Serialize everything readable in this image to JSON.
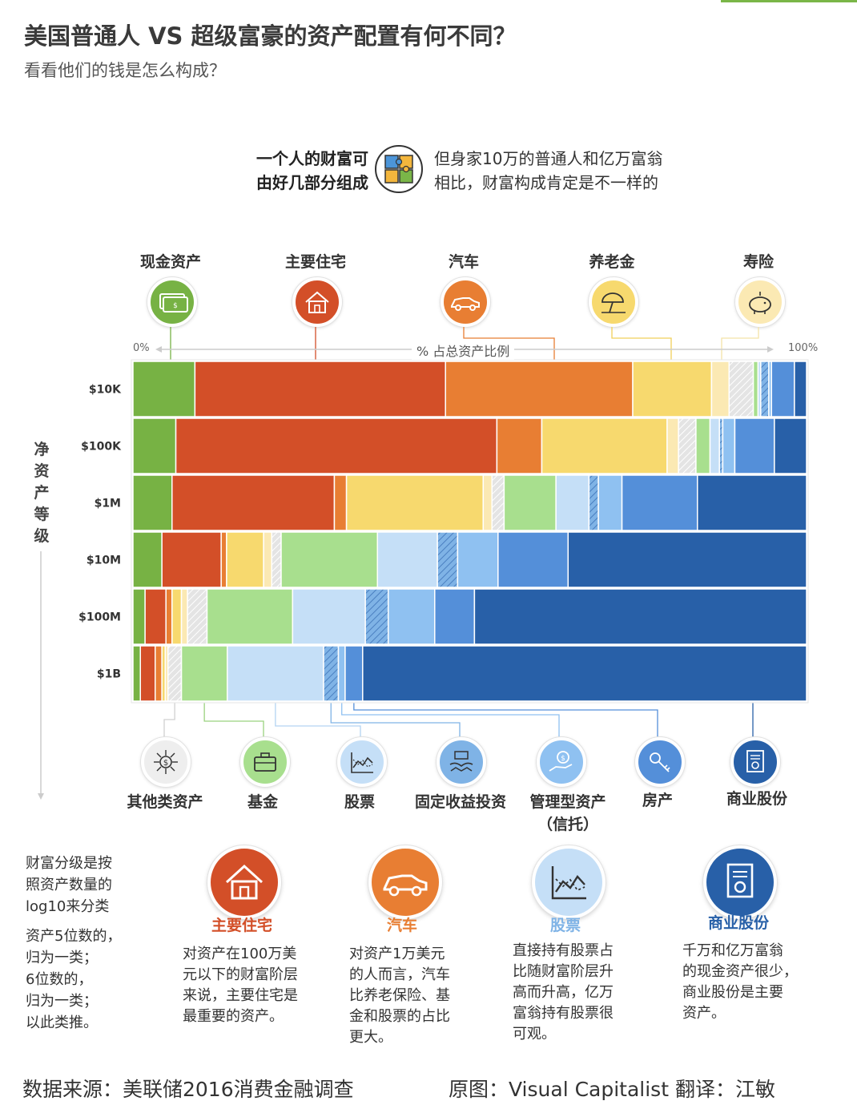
{
  "title": "美国普通人 VS 超级富豪的资产配置有何不同？",
  "subtitle": "看看他们的钱是怎么构成？",
  "intro": {
    "bold_line1": "一个人的财富可",
    "bold_line2": "由好几部分组成",
    "text_line1": "但身家10万的普通人和亿万富翁",
    "text_line2": "相比，财富构成肯定是不一样的",
    "icon": "puzzle-icon"
  },
  "categories_top": [
    {
      "label": "现金资产",
      "icon": "cash-icon",
      "color": "#77b244"
    },
    {
      "label": "主要住宅",
      "icon": "house-icon",
      "color": "#d34f28"
    },
    {
      "label": "汽车",
      "icon": "car-icon",
      "color": "#e87e33"
    },
    {
      "label": "养老金",
      "icon": "beach-umbrella-icon",
      "color": "#f7d96e"
    },
    {
      "label": "寿险",
      "icon": "piggy-bank-icon",
      "color": "#fbe9b3"
    }
  ],
  "categories_bottom": [
    {
      "label": "其他类资产",
      "icon": "dollar-network-icon",
      "color": "#e8e8e8"
    },
    {
      "label": "基金",
      "icon": "briefcase-icon",
      "color": "#a8df8e"
    },
    {
      "label": "股票",
      "icon": "stock-chart-icon",
      "color": "#c5dff7"
    },
    {
      "label": "固定收益投资",
      "icon": "money-hands-icon",
      "color": "#8bbde8"
    },
    {
      "label": "管理型资产（信托）",
      "icon": "hand-coin-icon",
      "color": "#8fc1f1"
    },
    {
      "label": "房产",
      "icon": "keys-icon",
      "color": "#548fd9"
    },
    {
      "label": "商业股份",
      "icon": "certificate-icon",
      "color": "#2860a8"
    }
  ],
  "chart_data": {
    "type": "bar",
    "orientation": "horizontal-stacked-100",
    "axis": {
      "left_label": "0%",
      "right_label": "100%",
      "title": "% 占总资产比例"
    },
    "ylabel": "净资产等级",
    "segments": [
      {
        "name": "现金资产",
        "color": "#77b244",
        "pattern": "solid"
      },
      {
        "name": "主要住宅",
        "color": "#d34f28",
        "pattern": "solid"
      },
      {
        "name": "汽车",
        "color": "#e87e33",
        "pattern": "solid"
      },
      {
        "name": "养老金",
        "color": "#f7d96e",
        "pattern": "solid"
      },
      {
        "name": "寿险",
        "color": "#fbe9b3",
        "pattern": "solid"
      },
      {
        "name": "其他类资产",
        "color": "#e4e4e4",
        "pattern": "hatch"
      },
      {
        "name": "基金",
        "color": "#a8df8e",
        "pattern": "solid"
      },
      {
        "name": "股票",
        "color": "#c5dff7",
        "pattern": "solid"
      },
      {
        "name": "固定收益投资",
        "color": "#7fb3e6",
        "pattern": "hatch"
      },
      {
        "name": "管理型资产（信托）",
        "color": "#8fc1f1",
        "pattern": "solid"
      },
      {
        "name": "房产",
        "color": "#548fd9",
        "pattern": "solid"
      },
      {
        "name": "商业股份",
        "color": "#2860a8",
        "pattern": "solid"
      }
    ],
    "rows": [
      {
        "label": "$10K",
        "values": [
          9.2,
          37.2,
          27.8,
          11.7,
          2.6,
          3.6,
          0.7,
          0.4,
          1.2,
          0.4,
          3.4,
          1.8
        ]
      },
      {
        "label": "$100K",
        "values": [
          6.4,
          47.9,
          6.7,
          18.7,
          1.7,
          2.6,
          2.1,
          1.4,
          0.5,
          1.8,
          5.9,
          4.8
        ]
      },
      {
        "label": "$1M",
        "values": [
          5.8,
          24.1,
          1.8,
          20.3,
          1.3,
          1.8,
          7.7,
          4.9,
          1.4,
          3.5,
          11.2,
          16.2
        ]
      },
      {
        "label": "$10M",
        "values": [
          4.3,
          8.8,
          0.8,
          5.5,
          1.2,
          1.4,
          14.3,
          8.9,
          3.0,
          6.0,
          10.4,
          35.4
        ]
      },
      {
        "label": "$100M",
        "values": [
          1.8,
          3.1,
          0.9,
          1.4,
          0.9,
          2.9,
          12.7,
          10.8,
          3.4,
          6.9,
          5.9,
          49.3
        ]
      },
      {
        "label": "$1B",
        "values": [
          1.1,
          2.2,
          1.0,
          0.5,
          0.4,
          2.0,
          6.8,
          14.3,
          2.2,
          1.0,
          2.6,
          65.9
        ]
      }
    ]
  },
  "note": {
    "line1": "财富分级是按",
    "line2": "照资产数量的",
    "line3": "log10来分类",
    "line4": "资产5位数的，",
    "line5": "归为一类；",
    "line6": "6位数的，",
    "line7": "归为一类；",
    "line8": "以此类推。"
  },
  "annotations": [
    {
      "title": "主要住宅",
      "color": "#d34f28",
      "icon": "house-icon",
      "lines": [
        "对资产在100万美",
        "元以下的财富阶层",
        "来说，主要住宅是",
        "最重要的资产。"
      ]
    },
    {
      "title": "汽车",
      "color": "#e87e33",
      "icon": "car-icon",
      "lines": [
        "对资产1万美元",
        "的人而言，汽车",
        "比养老保险、基",
        "金和股票的占比",
        "更大。"
      ]
    },
    {
      "title": "股票",
      "color": "#7fb3e6",
      "icon": "stock-chart-icon",
      "lines": [
        "直接持有股票占",
        "比随财富阶层升",
        "高而升高，亿万",
        "富翁持有股票很",
        "可观。"
      ]
    },
    {
      "title": "商业股份",
      "color": "#2860a8",
      "icon": "certificate-icon",
      "lines": [
        "千万和亿万富翁",
        "的现金资产很少，",
        "商业股份是主要",
        "资产。"
      ]
    }
  ],
  "footer": {
    "source": "数据来源：美联储2016消费金融调查",
    "original": "原图：Visual Capitalist  翻译：江敏"
  }
}
